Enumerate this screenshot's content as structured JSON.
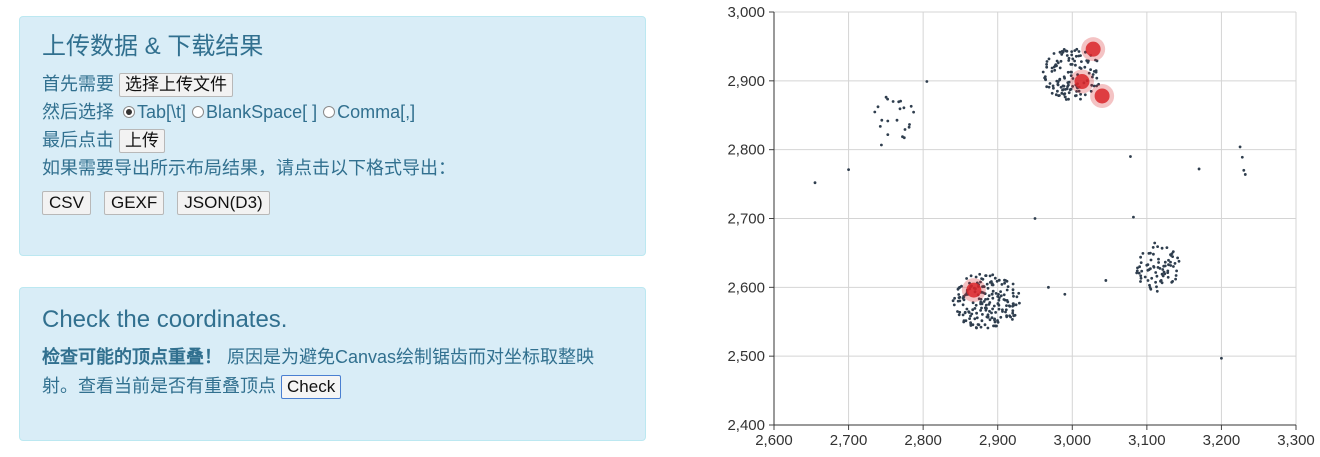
{
  "upload": {
    "title": "上传数据 & 下载结果",
    "step1_label": "首先需要",
    "choose_file_button": "选择上传文件",
    "step2_label": "然后选择",
    "separators": [
      {
        "label": "Tab[\\t]",
        "checked": true
      },
      {
        "label": "BlankSpace[ ]",
        "checked": false
      },
      {
        "label": "Comma[,]",
        "checked": false
      }
    ],
    "step3_label": "最后点击",
    "upload_button": "上传",
    "export_prompt": "如果需要导出所示布局结果，请点击以下格式导出：",
    "export_buttons": [
      "CSV",
      "GEXF",
      "JSON(D3)"
    ]
  },
  "check": {
    "title": "Check the coordinates.",
    "warning_bold": "检查可能的顶点重叠！",
    "description": " 原因是为避免Canvas绘制锯齿而对坐标取整映射。查看当前是否有重叠顶点",
    "check_button": "Check"
  },
  "chart_data": {
    "type": "scatter",
    "xlim": [
      2600,
      3300
    ],
    "ylim": [
      2400,
      3000
    ],
    "x_ticks": [
      "2,600",
      "2,700",
      "2,800",
      "2,900",
      "3,000",
      "3,100",
      "3,200",
      "3,300"
    ],
    "y_ticks": [
      "2,400",
      "2,500",
      "2,600",
      "2,700",
      "2,800",
      "2,900",
      "3,000"
    ],
    "grid": true,
    "point_color": "#2f3e4e",
    "highlight_color": "#d9262a",
    "clusters": [
      {
        "cx": 3000,
        "cy": 2910,
        "rx": 40,
        "ry": 38,
        "n": 130
      },
      {
        "cx": 2885,
        "cy": 2580,
        "rx": 45,
        "ry": 42,
        "n": 190
      },
      {
        "cx": 3115,
        "cy": 2630,
        "rx": 30,
        "ry": 38,
        "n": 75
      },
      {
        "cx": 2760,
        "cy": 2840,
        "rx": 35,
        "ry": 40,
        "n": 22
      }
    ],
    "outliers": [
      {
        "x": 2655,
        "y": 2752
      },
      {
        "x": 2700,
        "y": 2771
      },
      {
        "x": 2805,
        "y": 2899
      },
      {
        "x": 2950,
        "y": 2700
      },
      {
        "x": 3078,
        "y": 2790
      },
      {
        "x": 3170,
        "y": 2772
      },
      {
        "x": 3225,
        "y": 2804
      },
      {
        "x": 3228,
        "y": 2789
      },
      {
        "x": 3230,
        "y": 2770
      },
      {
        "x": 3232,
        "y": 2764
      },
      {
        "x": 3200,
        "y": 2497
      },
      {
        "x": 2968,
        "y": 2600
      },
      {
        "x": 2990,
        "y": 2590
      },
      {
        "x": 3045,
        "y": 2610
      },
      {
        "x": 3082,
        "y": 2702
      }
    ],
    "highlighted": [
      {
        "x": 3028,
        "y": 2946
      },
      {
        "x": 3013,
        "y": 2899
      },
      {
        "x": 3040,
        "y": 2878
      },
      {
        "x": 2868,
        "y": 2596
      }
    ]
  }
}
